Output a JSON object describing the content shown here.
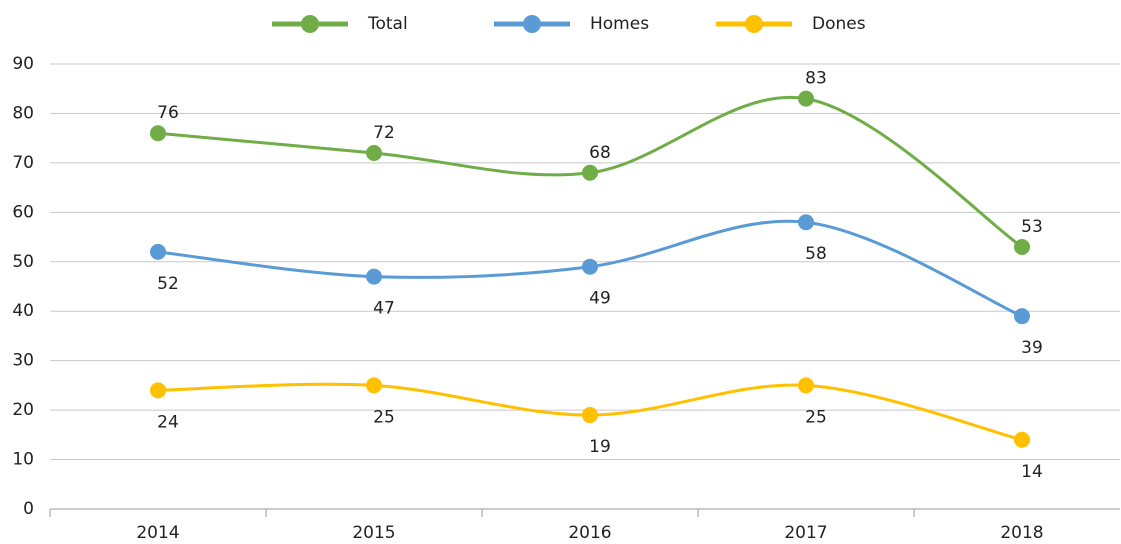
{
  "chart_data": {
    "type": "line",
    "categories": [
      "2014",
      "2015",
      "2016",
      "2017",
      "2018"
    ],
    "series": [
      {
        "name": "Total",
        "color": "#70ad47",
        "values": [
          76,
          72,
          68,
          83,
          53
        ]
      },
      {
        "name": "Homes",
        "color": "#5b9bd5",
        "values": [
          52,
          47,
          49,
          58,
          39
        ]
      },
      {
        "name": "Dones",
        "color": "#ffc000",
        "values": [
          24,
          25,
          19,
          25,
          14
        ]
      }
    ],
    "ylim": [
      0,
      90
    ],
    "yticks": [
      0,
      10,
      20,
      30,
      40,
      50,
      60,
      70,
      80,
      90
    ],
    "grid": true,
    "legend": "top",
    "smooth": true
  }
}
